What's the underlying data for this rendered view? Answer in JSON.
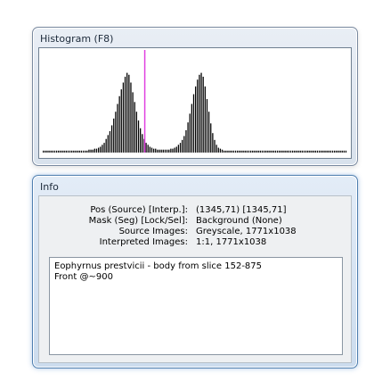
{
  "histogram": {
    "title": "Histogram (F8)",
    "marker_color": "#e040e0",
    "bar_color": "#000000",
    "marker_level": 0.335,
    "levels": [
      0.02,
      0.02,
      0.02,
      0.02,
      0.02,
      0.02,
      0.02,
      0.02,
      0.02,
      0.02,
      0.02,
      0.02,
      0.02,
      0.02,
      0.02,
      0.02,
      0.02,
      0.02,
      0.02,
      0.02,
      0.02,
      0.02,
      0.02,
      0.02,
      0.03,
      0.03,
      0.03,
      0.04,
      0.04,
      0.05,
      0.06,
      0.08,
      0.1,
      0.14,
      0.18,
      0.22,
      0.28,
      0.35,
      0.42,
      0.5,
      0.58,
      0.65,
      0.72,
      0.78,
      0.82,
      0.8,
      0.72,
      0.62,
      0.52,
      0.42,
      0.33,
      0.25,
      0.19,
      0.14,
      0.1,
      0.08,
      0.06,
      0.05,
      0.04,
      0.04,
      0.03,
      0.03,
      0.03,
      0.03,
      0.03,
      0.03,
      0.03,
      0.04,
      0.04,
      0.05,
      0.06,
      0.08,
      0.1,
      0.13,
      0.17,
      0.23,
      0.31,
      0.4,
      0.5,
      0.6,
      0.68,
      0.75,
      0.8,
      0.82,
      0.78,
      0.68,
      0.55,
      0.42,
      0.3,
      0.2,
      0.13,
      0.08,
      0.05,
      0.04,
      0.03,
      0.02,
      0.02,
      0.02,
      0.02,
      0.02,
      0.02,
      0.02,
      0.02,
      0.02,
      0.02,
      0.02,
      0.02,
      0.02,
      0.02,
      0.02,
      0.02,
      0.02,
      0.02,
      0.02,
      0.02,
      0.02,
      0.02,
      0.02,
      0.02,
      0.02,
      0.02,
      0.02,
      0.02,
      0.02,
      0.02,
      0.02,
      0.02,
      0.02,
      0.02,
      0.02,
      0.02,
      0.02,
      0.02,
      0.02,
      0.02,
      0.02,
      0.02,
      0.02,
      0.02,
      0.02,
      0.02,
      0.02,
      0.02,
      0.02,
      0.02,
      0.02,
      0.02,
      0.02,
      0.02,
      0.02,
      0.02,
      0.02,
      0.02,
      0.02,
      0.02,
      0.02,
      0.02,
      0.02,
      0.02,
      0.02
    ]
  },
  "info": {
    "title": "Info",
    "rows": [
      {
        "label": "Pos (Source) [Interp.]:",
        "value": "(1345,71) [1345,71]"
      },
      {
        "label": "Mask (Seg) [Lock/Sel]:",
        "value": "Background (None)"
      },
      {
        "label": "Source Images:",
        "value": "Greyscale, 1771x1038"
      },
      {
        "label": "Interpreted Images:",
        "value": "1:1, 1771x1038"
      }
    ],
    "notes": [
      "Eophyrnus prestvicii - body from slice 152-875",
      "Front @~900"
    ]
  }
}
